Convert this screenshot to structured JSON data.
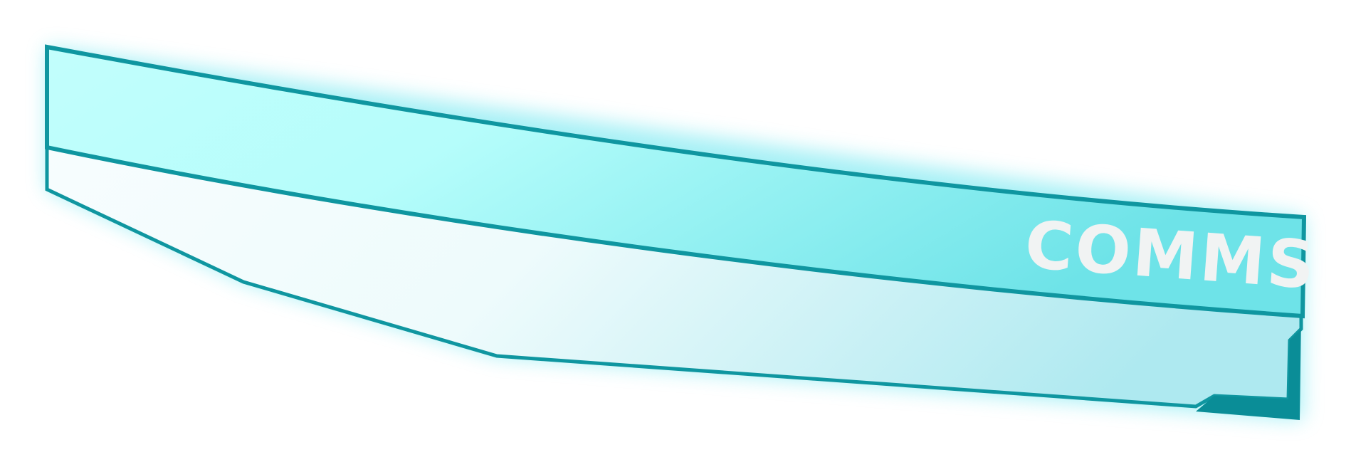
{
  "panel": {
    "label": "COMMS",
    "colors": {
      "stroke": "#0f96a0",
      "stroke_dark": "#0a8d97",
      "header_fill_light": "#b8fdfb",
      "header_fill_dark": "#6ee5ea",
      "body_fill_light": "#f3fcfd",
      "body_fill_dark": "#b2ecf2",
      "glow": "#4fe3ee",
      "label": "#f1f3f3"
    }
  }
}
